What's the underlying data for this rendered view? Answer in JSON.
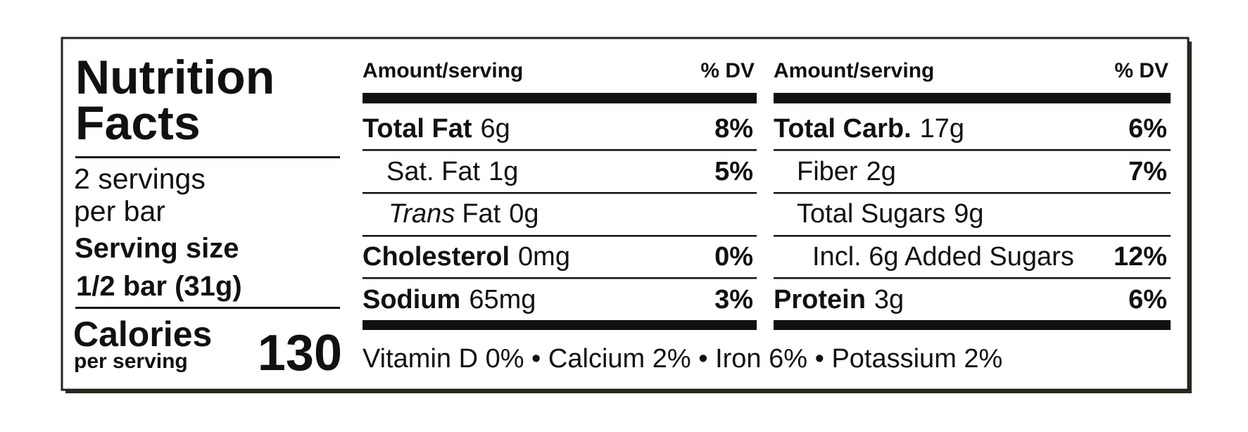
{
  "title_lines": [
    "Nutrition",
    "Facts"
  ],
  "servings": [
    "2 servings",
    "per bar"
  ],
  "serving_size": {
    "label": "Serving size",
    "value": "1/2 bar (31g)"
  },
  "calories": {
    "label": "Calories",
    "sublabel": "per serving",
    "value": "130"
  },
  "columns": [
    {
      "header": {
        "amount": "Amount/serving",
        "dv": "% DV"
      },
      "rows": [
        {
          "name": "Total Fat",
          "amount": "6g",
          "dv": "8%"
        },
        {
          "name": "Sat. Fat",
          "amount": "1g",
          "dv": "5%"
        },
        {
          "prefix": "Trans",
          "name": "Fat",
          "amount": "0g"
        },
        {
          "name": "Cholesterol",
          "amount": "0mg",
          "dv": "0%"
        },
        {
          "name": "Sodium",
          "amount": "65mg",
          "dv": "3%"
        }
      ]
    },
    {
      "header": {
        "amount": "Amount/serving",
        "dv": "% DV"
      },
      "rows": [
        {
          "name": "Total Carb.",
          "amount": "17g",
          "dv": "6%"
        },
        {
          "name": "Fiber",
          "amount": "2g",
          "dv": "7%"
        },
        {
          "name": "Total Sugars",
          "amount": "9g"
        },
        {
          "name": "Incl. 6g Added Sugars",
          "dv": "12%"
        },
        {
          "name": "Protein",
          "amount": "3g",
          "dv": "6%"
        }
      ]
    }
  ],
  "footer": "Vitamin D 0% • Calcium 2% • Iron 6% • Potassium 2%"
}
